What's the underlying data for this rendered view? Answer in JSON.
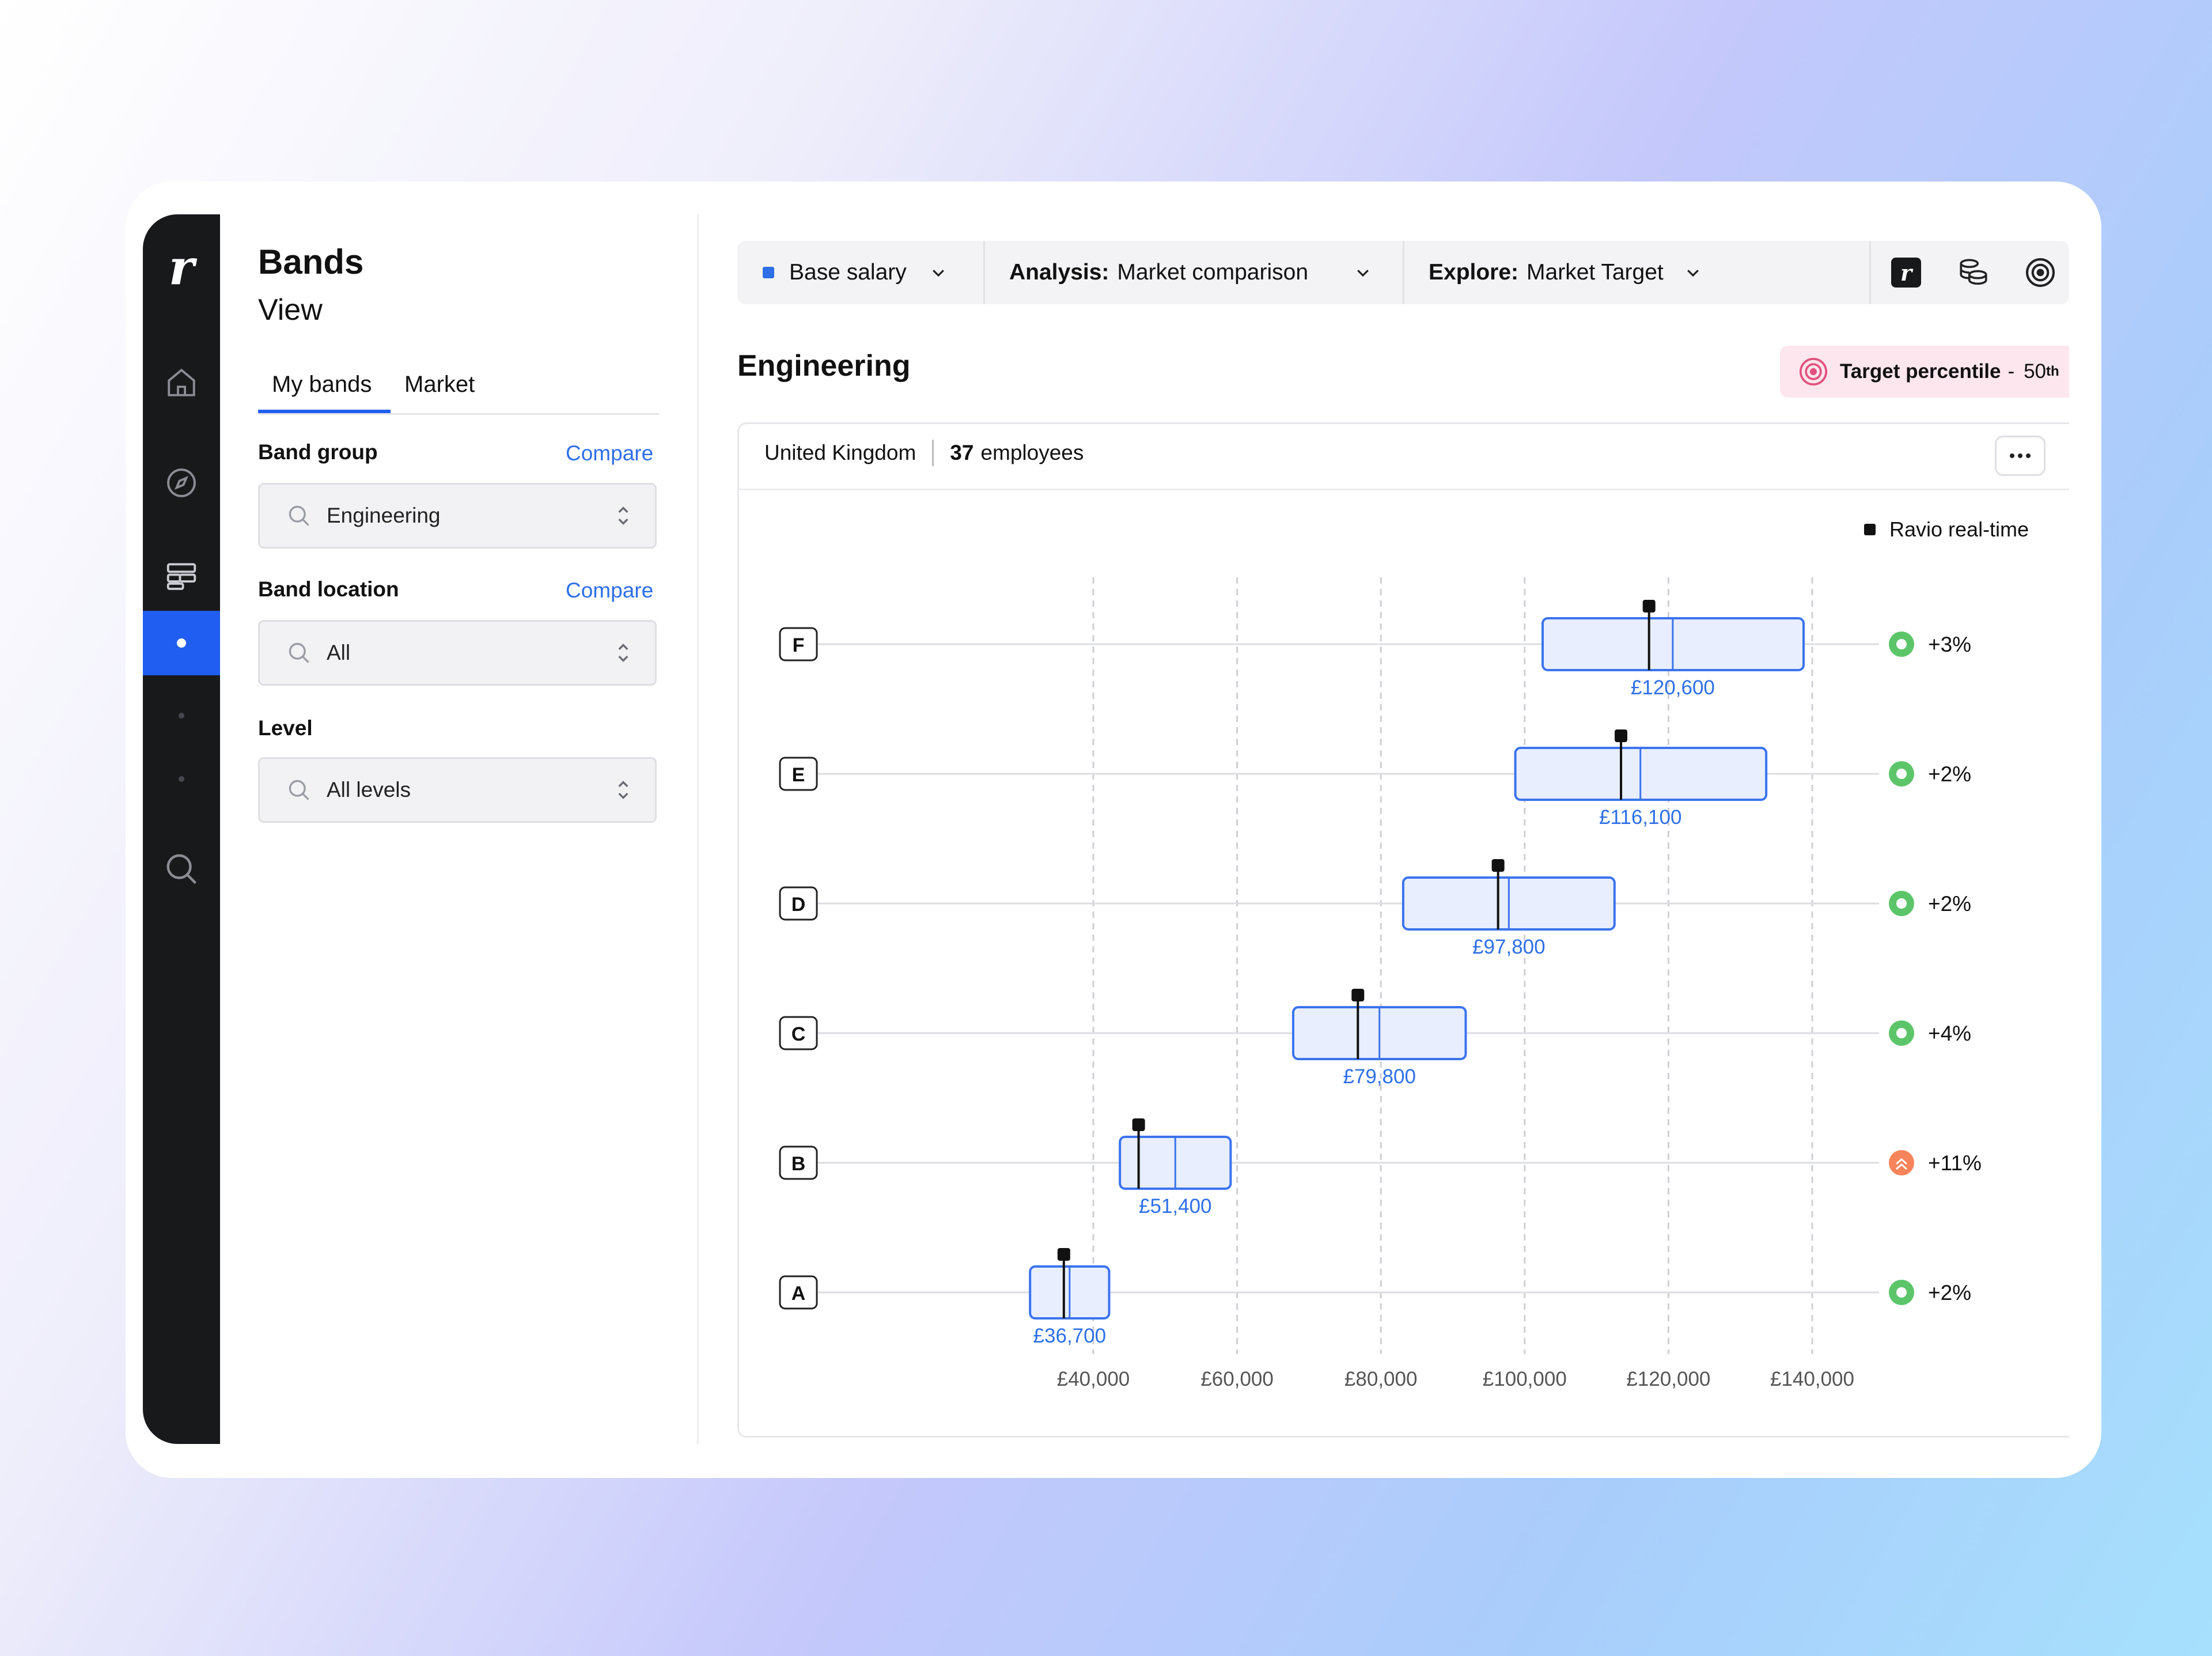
{
  "sidebar": {
    "logo": "r",
    "items": [
      "home-icon",
      "compass-icon",
      "bands-icon",
      "active-dot",
      "dot",
      "dot",
      "search-icon"
    ]
  },
  "panel": {
    "title": "Bands",
    "subtitle": "View",
    "tabs": [
      "My bands",
      "Market"
    ],
    "band_group": {
      "label": "Band group",
      "compare": "Compare",
      "value": "Engineering"
    },
    "band_location": {
      "label": "Band location",
      "compare": "Compare",
      "value": "All"
    },
    "level": {
      "label": "Level",
      "value": "All levels"
    }
  },
  "toolbar": {
    "metric": "Base salary",
    "metric_color": "#2e6fe8",
    "analysis_label": "Analysis:",
    "analysis_value": "Market comparison",
    "explore_label": "Explore:",
    "explore_value": "Market Target"
  },
  "main": {
    "title": "Engineering",
    "target": {
      "label": "Target percentile",
      "separator": "-",
      "value": "50",
      "suffix": "th"
    },
    "location": "United Kingdom",
    "employee_count": "37",
    "employee_label": "employees",
    "legend": "Ravio real-time"
  },
  "chart_data": {
    "type": "box",
    "x_ticks": [
      "£40,000",
      "£60,000",
      "£80,000",
      "£100,000",
      "£120,000",
      "£140,000"
    ],
    "xlim": [
      40000,
      140000
    ],
    "levels": [
      {
        "level": "F",
        "min": 102500,
        "mid": 120600,
        "max": 138800,
        "market": 117300,
        "mid_label": "£120,600",
        "delta": "+3%",
        "status": "ok"
      },
      {
        "level": "E",
        "min": 98700,
        "mid": 116100,
        "max": 133600,
        "market": 113400,
        "mid_label": "£116,100",
        "delta": "+2%",
        "status": "ok"
      },
      {
        "level": "D",
        "min": 83100,
        "mid": 97800,
        "max": 112500,
        "market": 96300,
        "mid_label": "£97,800",
        "delta": "+2%",
        "status": "ok"
      },
      {
        "level": "C",
        "min": 67800,
        "mid": 79800,
        "max": 91800,
        "market": 76800,
        "mid_label": "£79,800",
        "delta": "+4%",
        "status": "ok"
      },
      {
        "level": "B",
        "min": 43700,
        "mid": 51400,
        "max": 59100,
        "market": 46300,
        "mid_label": "£51,400",
        "delta": "+11%",
        "status": "high"
      },
      {
        "level": "A",
        "min": 31200,
        "mid": 36700,
        "max": 42200,
        "market": 35900,
        "mid_label": "£36,700",
        "delta": "+2%",
        "status": "ok"
      }
    ],
    "colors": {
      "band_fill": "#e8eefd",
      "band_stroke": "#3b73ee",
      "label": "#2e6fe8",
      "ok": "#5cc569",
      "high": "#f7845a",
      "marker": "#111111"
    }
  }
}
